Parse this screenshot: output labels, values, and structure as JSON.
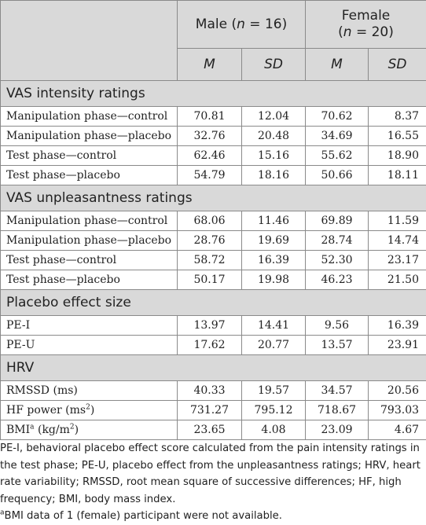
{
  "header": {
    "male_group": "Male (",
    "male_n": "n",
    "male_rest": " = 16)",
    "female_group_line1": "Female",
    "female_group_line2_open": "(",
    "female_n": "n",
    "female_rest": " = 20)",
    "stat_m": "M",
    "stat_sd": "SD"
  },
  "sections": [
    {
      "title": "VAS intensity ratings",
      "rows": [
        {
          "label": "Manipulation phase—control",
          "values": [
            "70.81",
            "12.04",
            "70.62",
            "8.37"
          ]
        },
        {
          "label": "Manipulation phase—placebo",
          "values": [
            "32.76",
            "20.48",
            "34.69",
            "16.55"
          ]
        },
        {
          "label": "Test phase—control",
          "values": [
            "62.46",
            "15.16",
            "55.62",
            "18.90"
          ]
        },
        {
          "label": "Test phase—placebo",
          "values": [
            "54.79",
            "18.16",
            "50.66",
            "18.11"
          ]
        }
      ]
    },
    {
      "title": "VAS unpleasantness ratings",
      "rows": [
        {
          "label": "Manipulation phase—control",
          "values": [
            "68.06",
            "11.46",
            "69.89",
            "11.59"
          ]
        },
        {
          "label": "Manipulation phase—placebo",
          "values": [
            "28.76",
            "19.69",
            "28.74",
            "14.74"
          ]
        },
        {
          "label": "Test phase—control",
          "values": [
            "58.72",
            "16.39",
            "52.30",
            "23.17"
          ]
        },
        {
          "label": "Test phase—placebo",
          "values": [
            "50.17",
            "19.98",
            "46.23",
            "21.50"
          ]
        }
      ]
    },
    {
      "title": "Placebo effect size",
      "rows": [
        {
          "label": "PE-I",
          "values": [
            "13.97",
            "14.41",
            "9.56",
            "16.39"
          ]
        },
        {
          "label": "PE-U",
          "values": [
            "17.62",
            "20.77",
            "13.57",
            "23.91"
          ]
        }
      ]
    },
    {
      "title": "HRV",
      "rows": [
        {
          "label": "RMSSD (ms)",
          "values": [
            "40.33",
            "19.57",
            "34.57",
            "20.56"
          ]
        },
        {
          "label_main": "HF power (ms",
          "label_sup": "2",
          "label_end": ")",
          "values": [
            "731.27",
            "795.12",
            "718.67",
            "793.03"
          ]
        },
        {
          "label_main": "BMI",
          "label_sup": "a",
          "label_mid": " (kg/m",
          "label_sup2": "2",
          "label_end": ")",
          "values": [
            "23.65",
            "4.08",
            "23.09",
            "4.67"
          ]
        }
      ]
    }
  ],
  "footnotes": {
    "abbreviations": "PE-I, behavioral placebo effect score calculated from the pain intensity ratings in the test phase; PE-U, placebo effect from the unpleasantness ratings; HRV, heart rate variability; RMSSD, root mean square of successive differences; HF, high frequency; BMI, body mass index.",
    "note_marker": "a",
    "note_text": "BMI data of 1 (female) participant were not available."
  }
}
